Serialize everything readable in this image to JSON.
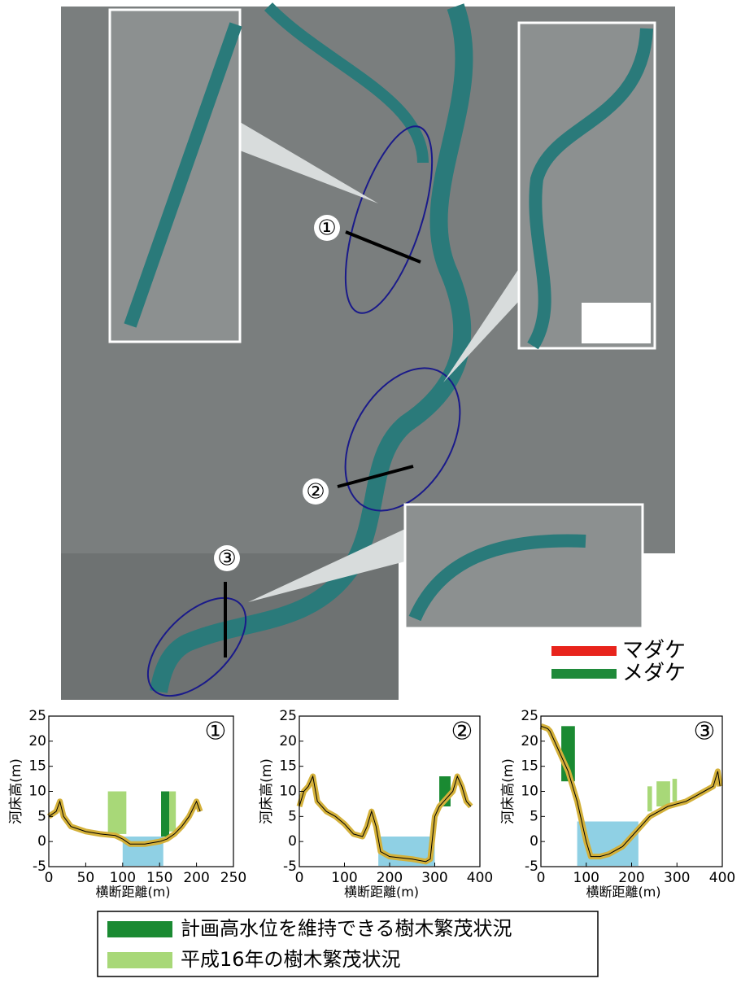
{
  "map": {
    "markers": [
      "①",
      "②",
      "③"
    ],
    "legend": [
      {
        "name": "マダケ",
        "color": "#e8241c"
      },
      {
        "name": "メダケ",
        "color": "#1f8a3a"
      }
    ]
  },
  "chart_data": [
    {
      "type": "section",
      "label": "①",
      "y_label": "河床高(m)",
      "x_label": "横断距離(m)",
      "xlim": [
        0,
        250
      ],
      "xticks": [
        0,
        50,
        100,
        150,
        200,
        250
      ],
      "ylim": [
        -5,
        25
      ],
      "yticks": [
        -5,
        0,
        5,
        10,
        15,
        20,
        25
      ],
      "bed": {
        "x": [
          0,
          10,
          15,
          20,
          30,
          50,
          70,
          90,
          100,
          110,
          130,
          150,
          160,
          170,
          180,
          190,
          200,
          205
        ],
        "y": [
          5,
          6,
          8,
          5,
          3,
          2,
          1.5,
          1.2,
          0.5,
          -0.5,
          -0.5,
          0,
          0.5,
          1.5,
          3,
          5,
          8,
          6
        ]
      },
      "water": {
        "x": [
          100,
          155
        ],
        "level": 1
      },
      "bars": [
        {
          "x": [
            80,
            105
          ],
          "bottom": 1.5,
          "top": 10,
          "color": "#a8d878"
        },
        {
          "x": [
            152,
            163
          ],
          "bottom": 1,
          "top": 10,
          "color": "#1a8a32"
        },
        {
          "x": [
            163,
            172
          ],
          "bottom": 2,
          "top": 10,
          "color": "#a8d878"
        }
      ]
    },
    {
      "type": "section",
      "label": "②",
      "y_label": "河床高(m)",
      "x_label": "横断距離(m)",
      "xlim": [
        0,
        400
      ],
      "xticks": [
        0,
        100,
        200,
        300,
        400
      ],
      "ylim": [
        -5,
        25
      ],
      "yticks": [
        -5,
        0,
        5,
        10,
        15,
        20,
        25
      ],
      "bed": {
        "x": [
          0,
          10,
          20,
          30,
          40,
          60,
          80,
          100,
          120,
          140,
          150,
          160,
          170,
          180,
          200,
          250,
          280,
          290,
          300,
          310,
          320,
          330,
          340,
          350,
          360,
          370,
          380
        ],
        "y": [
          7,
          10,
          11,
          13,
          8,
          6,
          5,
          3.5,
          1.5,
          1,
          3,
          6,
          3,
          -2,
          -3,
          -3.5,
          -4,
          -3.5,
          5,
          7,
          8,
          9,
          10,
          13,
          11,
          8,
          7
        ]
      },
      "water": {
        "x": [
          175,
          300
        ],
        "level": 1
      },
      "bars": [
        {
          "x": [
            310,
            335
          ],
          "bottom": 7,
          "top": 13,
          "color": "#1a8a32"
        }
      ]
    },
    {
      "type": "section",
      "label": "③",
      "y_label": "河床高(m)",
      "x_label": "横断距離(m)",
      "xlim": [
        0,
        400
      ],
      "xticks": [
        0,
        100,
        200,
        300,
        400
      ],
      "ylim": [
        -5,
        25
      ],
      "yticks": [
        -5,
        0,
        5,
        10,
        15,
        20,
        25
      ],
      "bed": {
        "x": [
          0,
          15,
          20,
          30,
          40,
          60,
          80,
          100,
          110,
          130,
          150,
          180,
          200,
          220,
          240,
          260,
          280,
          300,
          320,
          340,
          360,
          380,
          390,
          395
        ],
        "y": [
          23,
          22.5,
          22,
          20,
          18,
          14,
          8,
          0,
          -3,
          -3,
          -2.5,
          -1,
          1,
          3,
          5,
          6,
          7,
          7.5,
          8,
          9,
          10,
          11,
          14,
          11
        ]
      },
      "water": {
        "x": [
          80,
          215
        ],
        "level": 4
      },
      "bars": [
        {
          "x": [
            45,
            75
          ],
          "bottom": 12,
          "top": 23,
          "color": "#1a8a32"
        },
        {
          "x": [
            235,
            245
          ],
          "bottom": 6,
          "top": 11,
          "color": "#a8d878"
        },
        {
          "x": [
            255,
            285
          ],
          "bottom": 7,
          "top": 12,
          "color": "#a8d878"
        },
        {
          "x": [
            290,
            300
          ],
          "bottom": 8,
          "top": 12.5,
          "color": "#a8d878"
        }
      ]
    }
  ],
  "legend": [
    {
      "name": "計画高水位を維持できる樹木繁茂状況",
      "color": "#1a8a32"
    },
    {
      "name": "平成16年の樹木繁茂状況",
      "color": "#a8d878"
    }
  ]
}
